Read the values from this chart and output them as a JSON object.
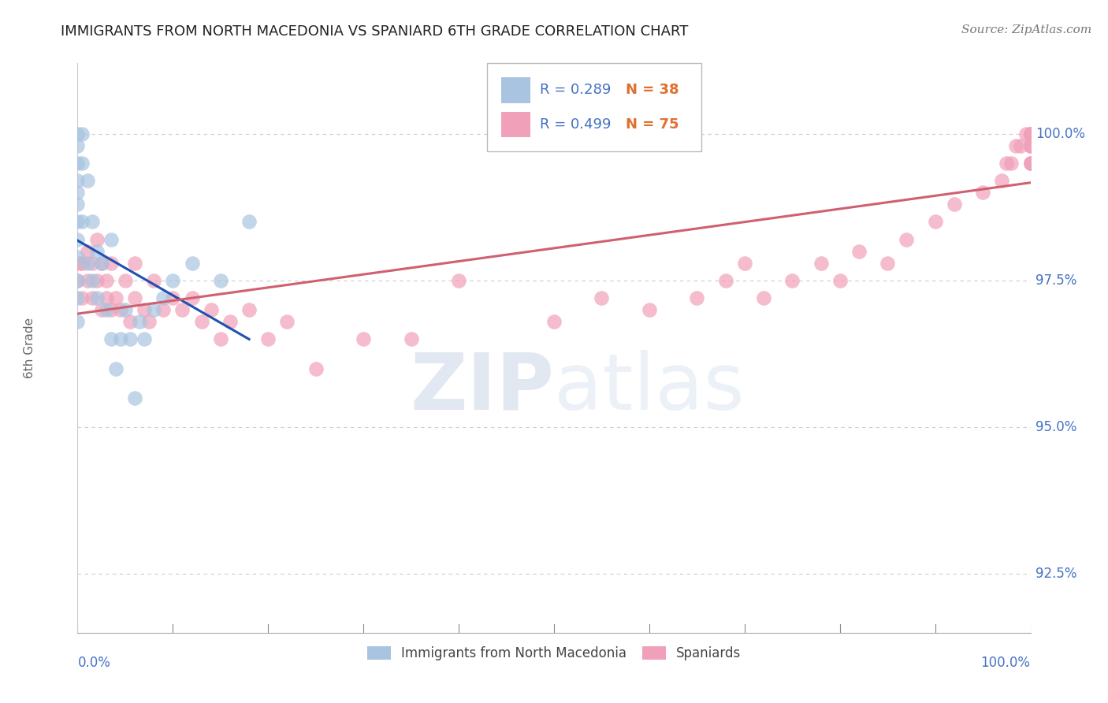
{
  "title": "IMMIGRANTS FROM NORTH MACEDONIA VS SPANIARD 6TH GRADE CORRELATION CHART",
  "source": "Source: ZipAtlas.com",
  "ylabel": "6th Grade",
  "y_ticks": [
    92.5,
    95.0,
    97.5,
    100.0
  ],
  "y_tick_labels": [
    "92.5%",
    "95.0%",
    "97.5%",
    "100.0%"
  ],
  "x_left_label": "0.0%",
  "x_right_label": "100.0%",
  "legend_blue_label": "Immigrants from North Macedonia",
  "legend_pink_label": "Spaniards",
  "R_blue": 0.289,
  "N_blue": 38,
  "R_pink": 0.499,
  "N_pink": 75,
  "blue_color": "#a8c4e0",
  "pink_color": "#f0a0b8",
  "blue_line_color": "#2050b0",
  "pink_line_color": "#d06070",
  "text_blue": "#4472c4",
  "text_orange": "#e07030",
  "watermark_color": "#d0dff0",
  "blue_x": [
    0.0,
    0.0,
    0.0,
    0.0,
    0.0,
    0.0,
    0.0,
    0.0,
    0.0,
    0.0,
    0.0,
    0.0,
    0.5,
    0.5,
    0.5,
    1.0,
    1.0,
    1.5,
    1.5,
    2.0,
    2.0,
    2.5,
    3.0,
    3.5,
    3.5,
    4.0,
    4.5,
    5.0,
    5.5,
    6.0,
    6.5,
    7.0,
    8.0,
    9.0,
    10.0,
    12.0,
    15.0,
    18.0
  ],
  "blue_y": [
    100.0,
    99.8,
    99.5,
    99.2,
    99.0,
    98.8,
    98.5,
    98.2,
    97.9,
    97.5,
    97.2,
    96.8,
    100.0,
    99.5,
    98.5,
    99.2,
    97.8,
    98.5,
    97.5,
    98.0,
    97.2,
    97.8,
    97.0,
    96.5,
    98.2,
    96.0,
    96.5,
    97.0,
    96.5,
    95.5,
    96.8,
    96.5,
    97.0,
    97.2,
    97.5,
    97.8,
    97.5,
    98.5
  ],
  "pink_x": [
    0.0,
    0.2,
    0.5,
    0.5,
    1.0,
    1.0,
    1.5,
    1.5,
    2.0,
    2.0,
    2.5,
    2.5,
    3.0,
    3.0,
    3.5,
    3.5,
    4.0,
    4.5,
    5.0,
    5.5,
    6.0,
    6.0,
    7.0,
    7.5,
    8.0,
    9.0,
    10.0,
    11.0,
    12.0,
    13.0,
    14.0,
    15.0,
    16.0,
    18.0,
    20.0,
    22.0,
    25.0,
    30.0,
    35.0,
    40.0,
    50.0,
    55.0,
    60.0,
    65.0,
    68.0,
    70.0,
    72.0,
    75.0,
    78.0,
    80.0,
    82.0,
    85.0,
    87.0,
    90.0,
    92.0,
    95.0,
    97.0,
    97.5,
    98.0,
    98.5,
    99.0,
    99.5,
    100.0,
    100.0,
    100.0,
    100.0,
    100.0,
    100.0,
    100.0,
    100.0,
    100.0,
    100.0,
    100.0,
    100.0,
    100.0
  ],
  "pink_y": [
    97.5,
    97.8,
    97.2,
    97.8,
    97.5,
    98.0,
    97.8,
    97.2,
    97.5,
    98.2,
    97.0,
    97.8,
    97.2,
    97.5,
    97.0,
    97.8,
    97.2,
    97.0,
    97.5,
    96.8,
    97.2,
    97.8,
    97.0,
    96.8,
    97.5,
    97.0,
    97.2,
    97.0,
    97.2,
    96.8,
    97.0,
    96.5,
    96.8,
    97.0,
    96.5,
    96.8,
    96.0,
    96.5,
    96.5,
    97.5,
    96.8,
    97.2,
    97.0,
    97.2,
    97.5,
    97.8,
    97.2,
    97.5,
    97.8,
    97.5,
    98.0,
    97.8,
    98.2,
    98.5,
    98.8,
    99.0,
    99.2,
    99.5,
    99.5,
    99.8,
    99.8,
    100.0,
    100.0,
    99.8,
    100.0,
    99.5,
    100.0,
    99.8,
    100.0,
    99.5,
    100.0,
    99.8,
    100.0,
    99.5,
    100.0
  ]
}
